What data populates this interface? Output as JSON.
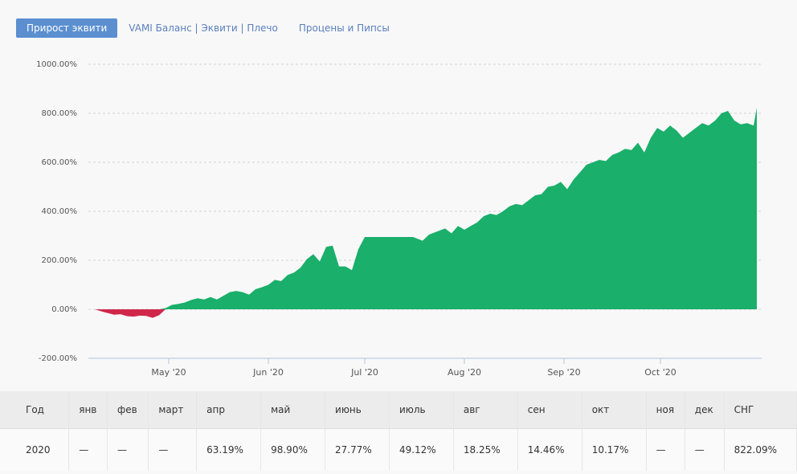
{
  "tabs": [
    {
      "label": "Прирост эквити",
      "active": true
    },
    {
      "label": "VAMI Баланс | Эквити | Плечо",
      "active": false
    },
    {
      "label": "Процены и Пипсы",
      "active": false
    }
  ],
  "chart_data": {
    "type": "area",
    "y_ticks": [
      "1000.00%",
      "800.00%",
      "600.00%",
      "400.00%",
      "200.00%",
      "0.00%",
      "-200.00%"
    ],
    "x_ticks": [
      "May '20",
      "Jun '20",
      "Jul '20",
      "Aug '20",
      "Sep '20",
      "Oct '20"
    ],
    "ylim": [
      -200,
      1000
    ],
    "x_range": [
      "2020-04-08",
      "2020-10-31"
    ],
    "grid": true,
    "colors": {
      "positive": "#1aaf6a",
      "negative": "#d0284a",
      "axis": "#b0c4e0"
    },
    "points": [
      [
        "2020-04-08",
        0
      ],
      [
        "2020-04-10",
        -8
      ],
      [
        "2020-04-11",
        -12
      ],
      [
        "2020-04-12",
        -15
      ],
      [
        "2020-04-14",
        -22
      ],
      [
        "2020-04-16",
        -20
      ],
      [
        "2020-04-18",
        -28
      ],
      [
        "2020-04-20",
        -30
      ],
      [
        "2020-04-22",
        -26
      ],
      [
        "2020-04-24",
        -27
      ],
      [
        "2020-04-26",
        -35
      ],
      [
        "2020-04-28",
        -24
      ],
      [
        "2020-04-30",
        5
      ],
      [
        "2020-05-02",
        18
      ],
      [
        "2020-05-04",
        22
      ],
      [
        "2020-05-06",
        28
      ],
      [
        "2020-05-08",
        38
      ],
      [
        "2020-05-10",
        45
      ],
      [
        "2020-05-12",
        40
      ],
      [
        "2020-05-14",
        50
      ],
      [
        "2020-05-16",
        40
      ],
      [
        "2020-05-18",
        55
      ],
      [
        "2020-05-20",
        70
      ],
      [
        "2020-05-22",
        75
      ],
      [
        "2020-05-24",
        70
      ],
      [
        "2020-05-26",
        60
      ],
      [
        "2020-05-28",
        82
      ],
      [
        "2020-05-30",
        90
      ],
      [
        "2020-06-01",
        100
      ],
      [
        "2020-06-03",
        120
      ],
      [
        "2020-06-05",
        115
      ],
      [
        "2020-06-07",
        140
      ],
      [
        "2020-06-09",
        150
      ],
      [
        "2020-06-11",
        170
      ],
      [
        "2020-06-13",
        205
      ],
      [
        "2020-06-15",
        225
      ],
      [
        "2020-06-17",
        195
      ],
      [
        "2020-06-19",
        255
      ],
      [
        "2020-06-21",
        260
      ],
      [
        "2020-06-23",
        175
      ],
      [
        "2020-06-25",
        175
      ],
      [
        "2020-06-27",
        160
      ],
      [
        "2020-06-29",
        245
      ],
      [
        "2020-07-01",
        295
      ],
      [
        "2020-07-10",
        295
      ],
      [
        "2020-07-16",
        295
      ],
      [
        "2020-07-19",
        280
      ],
      [
        "2020-07-21",
        305
      ],
      [
        "2020-07-24",
        320
      ],
      [
        "2020-07-26",
        330
      ],
      [
        "2020-07-28",
        310
      ],
      [
        "2020-07-30",
        340
      ],
      [
        "2020-08-01",
        325
      ],
      [
        "2020-08-03",
        340
      ],
      [
        "2020-08-05",
        355
      ],
      [
        "2020-08-07",
        380
      ],
      [
        "2020-08-09",
        390
      ],
      [
        "2020-08-11",
        385
      ],
      [
        "2020-08-13",
        400
      ],
      [
        "2020-08-15",
        420
      ],
      [
        "2020-08-17",
        430
      ],
      [
        "2020-08-19",
        425
      ],
      [
        "2020-08-21",
        445
      ],
      [
        "2020-08-23",
        465
      ],
      [
        "2020-08-25",
        470
      ],
      [
        "2020-08-27",
        500
      ],
      [
        "2020-08-29",
        505
      ],
      [
        "2020-08-31",
        520
      ],
      [
        "2020-09-02",
        490
      ],
      [
        "2020-09-04",
        530
      ],
      [
        "2020-09-06",
        560
      ],
      [
        "2020-09-08",
        590
      ],
      [
        "2020-09-10",
        600
      ],
      [
        "2020-09-12",
        610
      ],
      [
        "2020-09-14",
        605
      ],
      [
        "2020-09-16",
        630
      ],
      [
        "2020-09-18",
        640
      ],
      [
        "2020-09-20",
        655
      ],
      [
        "2020-09-22",
        650
      ],
      [
        "2020-09-24",
        680
      ],
      [
        "2020-09-26",
        640
      ],
      [
        "2020-09-28",
        700
      ],
      [
        "2020-09-30",
        740
      ],
      [
        "2020-10-02",
        725
      ],
      [
        "2020-10-04",
        750
      ],
      [
        "2020-10-06",
        730
      ],
      [
        "2020-10-08",
        700
      ],
      [
        "2020-10-10",
        720
      ],
      [
        "2020-10-12",
        740
      ],
      [
        "2020-10-14",
        760
      ],
      [
        "2020-10-16",
        750
      ],
      [
        "2020-10-18",
        770
      ],
      [
        "2020-10-20",
        800
      ],
      [
        "2020-10-22",
        810
      ],
      [
        "2020-10-24",
        770
      ],
      [
        "2020-10-26",
        755
      ],
      [
        "2020-10-28",
        760
      ],
      [
        "2020-10-30",
        750
      ],
      [
        "2020-10-31",
        822
      ]
    ]
  },
  "table": {
    "headers": [
      "Год",
      "янв",
      "фев",
      "март",
      "апр",
      "май",
      "июнь",
      "июль",
      "авг",
      "сен",
      "окт",
      "ноя",
      "дек",
      "СНГ"
    ],
    "rows": [
      [
        "2020",
        "—",
        "—",
        "—",
        "63.19%",
        "98.90%",
        "27.77%",
        "49.12%",
        "18.25%",
        "14.46%",
        "10.17%",
        "—",
        "—",
        "822.09%"
      ]
    ]
  }
}
